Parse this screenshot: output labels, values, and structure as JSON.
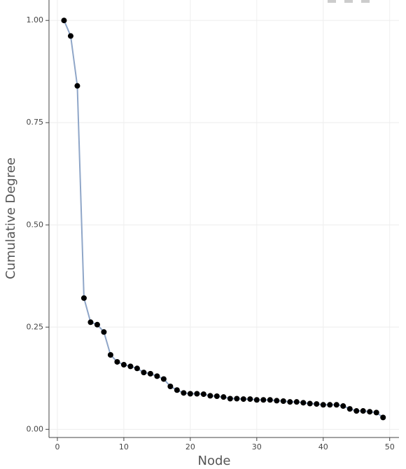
{
  "chart_data": {
    "type": "line",
    "xlabel": "Node",
    "ylabel": "Cumulative Degree",
    "x": [
      1,
      2,
      3,
      4,
      5,
      6,
      7,
      8,
      9,
      10,
      11,
      12,
      13,
      14,
      15,
      16,
      17,
      18,
      19,
      20,
      21,
      22,
      23,
      24,
      25,
      26,
      27,
      28,
      29,
      30,
      31,
      32,
      33,
      34,
      35,
      36,
      37,
      38,
      39,
      40,
      41,
      42,
      43,
      44,
      45,
      46,
      47,
      48,
      49
    ],
    "series": [
      {
        "color": "#8fa6c8",
        "marker_color": "#000000",
        "values": [
          1.0,
          0.962,
          0.84,
          0.321,
          0.262,
          0.256,
          0.238,
          0.182,
          0.165,
          0.158,
          0.154,
          0.149,
          0.139,
          0.136,
          0.13,
          0.123,
          0.105,
          0.096,
          0.089,
          0.087,
          0.087,
          0.086,
          0.082,
          0.081,
          0.079,
          0.075,
          0.075,
          0.074,
          0.074,
          0.072,
          0.072,
          0.072,
          0.07,
          0.069,
          0.067,
          0.067,
          0.065,
          0.063,
          0.062,
          0.06,
          0.06,
          0.06,
          0.057,
          0.05,
          0.045,
          0.045,
          0.043,
          0.041,
          0.029
        ]
      }
    ],
    "xlim": [
      -1.26,
      51.4
    ],
    "ylim": [
      -0.02,
      1.05
    ],
    "xticks": [
      0,
      10,
      20,
      30,
      40,
      50
    ],
    "yticks": [
      {
        "value": 0,
        "label": "0.00"
      },
      {
        "value": 0.25,
        "label": "0.25"
      },
      {
        "value": 0.5,
        "label": "0.50"
      },
      {
        "value": 0.75,
        "label": "0.75"
      },
      {
        "value": 1,
        "label": "1.00"
      }
    ],
    "grid": true
  }
}
